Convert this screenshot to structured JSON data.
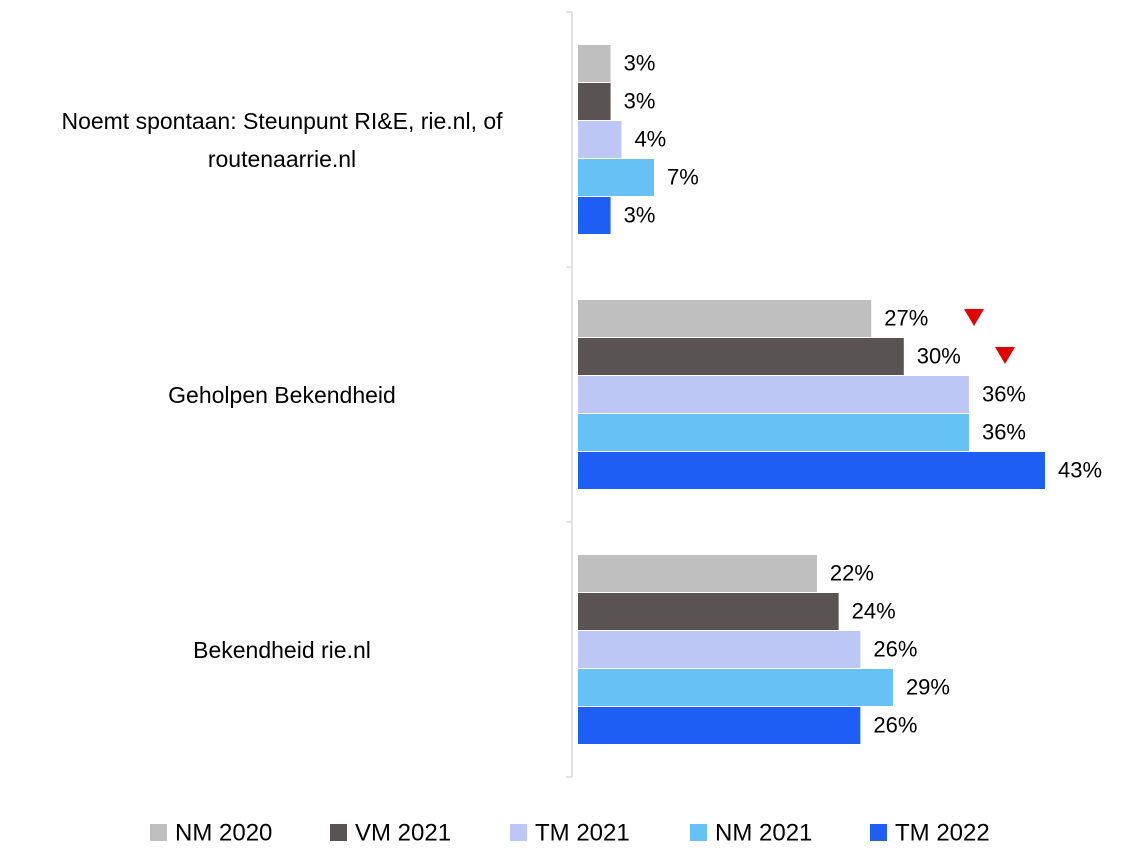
{
  "chart_data": {
    "type": "bar",
    "orientation": "horizontal",
    "categories": [
      "Noemt spontaan: Steunpunt RI&E, rie.nl, of routenaarrie.nl",
      "Geholpen Bekendheid",
      "Bekendheid rie.nl"
    ],
    "series": [
      {
        "name": "NM 2020",
        "color": "#bfbfbf",
        "values": [
          3,
          27,
          22
        ],
        "value_labels": [
          "3%",
          "27%",
          "22%"
        ]
      },
      {
        "name": "VM 2021",
        "color": "#595353",
        "values": [
          3,
          30,
          24
        ],
        "value_labels": [
          "3%",
          "30%",
          "24%"
        ]
      },
      {
        "name": "TM 2021",
        "color": "#bcc7f5",
        "values": [
          4,
          36,
          26
        ],
        "value_labels": [
          "4%",
          "36%",
          "26%"
        ]
      },
      {
        "name": "NM 2021",
        "color": "#66c1f5",
        "values": [
          7,
          36,
          29
        ],
        "value_labels": [
          "7%",
          "36%",
          "29%"
        ]
      },
      {
        "name": "TM 2022",
        "color": "#1f5ef5",
        "values": [
          3,
          43,
          26
        ],
        "value_labels": [
          "3%",
          "43%",
          "26%"
        ]
      }
    ],
    "legend": "bottom"
  }
}
